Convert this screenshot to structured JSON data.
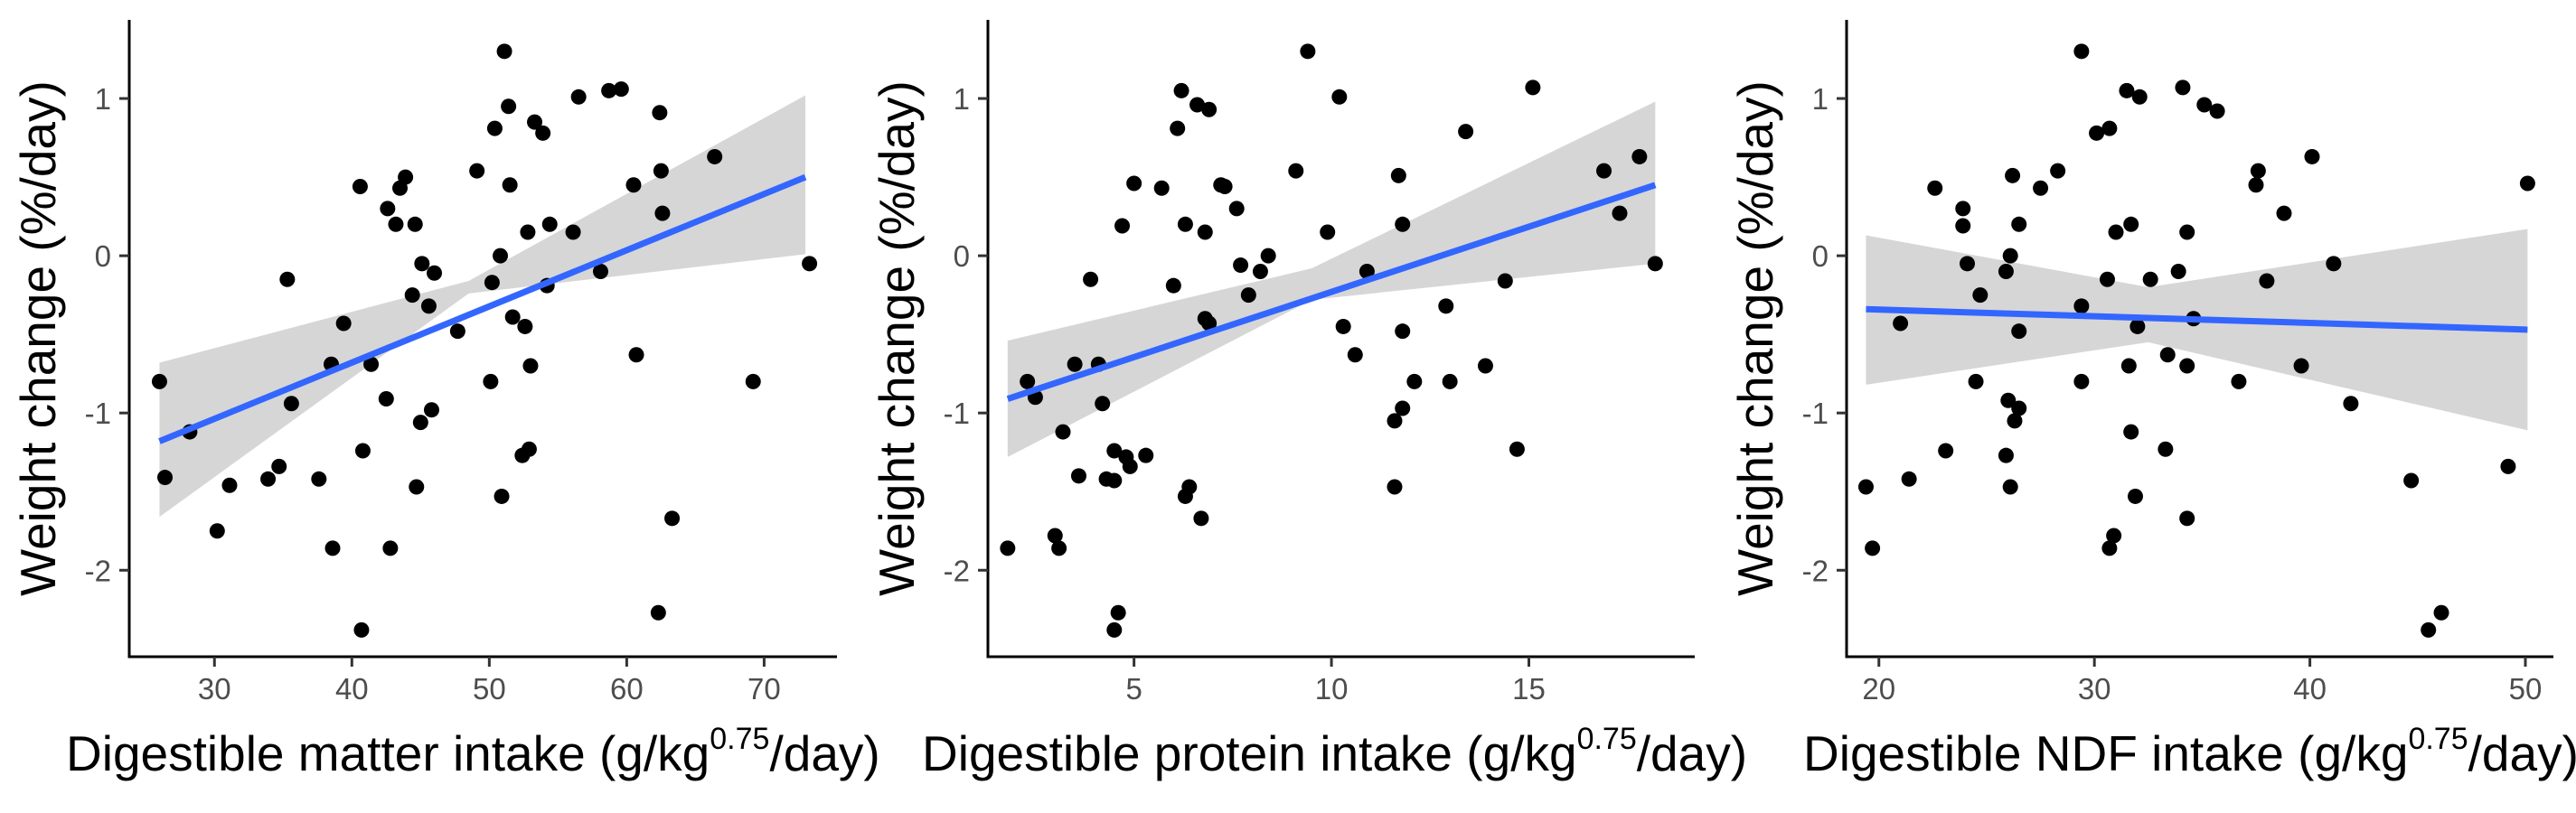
{
  "chart_data": [
    {
      "type": "scatter",
      "xlabel": "Digestible matter intake (g/kg",
      "xlabel_sup": "0.75",
      "xlabel_tail": "/day)",
      "ylabel": "Weight change (%/day)",
      "xlim": [
        23.8,
        75.3
      ],
      "ylim": [
        -2.55,
        1.5
      ],
      "xticks": [
        30,
        40,
        50,
        60,
        70
      ],
      "yticks": [
        -2,
        -1,
        0,
        1
      ],
      "grid": false,
      "smooth": {
        "method": "lm",
        "start": [
          26,
          -1.18
        ],
        "end": [
          73,
          0.5
        ],
        "ci_lower": [
          -1.66,
          -0.24,
          0.01
        ],
        "ci_upper": [
          -0.68,
          -0.16,
          1.02
        ],
        "ci_x": [
          26,
          48.5,
          73
        ]
      },
      "points": [
        {
          "x": 26,
          "y": -0.8
        },
        {
          "x": 26.4,
          "y": -1.41
        },
        {
          "x": 28.2,
          "y": -1.12
        },
        {
          "x": 30.2,
          "y": -1.75
        },
        {
          "x": 31.1,
          "y": -1.46
        },
        {
          "x": 33.9,
          "y": -1.42
        },
        {
          "x": 34.7,
          "y": -1.34
        },
        {
          "x": 35.3,
          "y": -0.15
        },
        {
          "x": 35.6,
          "y": -0.94
        },
        {
          "x": 37.6,
          "y": -1.42
        },
        {
          "x": 38.5,
          "y": -0.69
        },
        {
          "x": 38.6,
          "y": -1.86
        },
        {
          "x": 39.4,
          "y": -0.43
        },
        {
          "x": 40.6,
          "y": 0.44
        },
        {
          "x": 40.7,
          "y": -2.38
        },
        {
          "x": 40.8,
          "y": -1.24
        },
        {
          "x": 41.4,
          "y": -0.69
        },
        {
          "x": 42.5,
          "y": -0.91
        },
        {
          "x": 42.6,
          "y": 0.3
        },
        {
          "x": 42.8,
          "y": -1.86
        },
        {
          "x": 43.2,
          "y": 0.2
        },
        {
          "x": 43.5,
          "y": 0.43
        },
        {
          "x": 43.9,
          "y": 0.5
        },
        {
          "x": 44.4,
          "y": -0.25
        },
        {
          "x": 44.6,
          "y": 0.2
        },
        {
          "x": 44.7,
          "y": -1.47
        },
        {
          "x": 45,
          "y": -1.06
        },
        {
          "x": 45.1,
          "y": -0.05
        },
        {
          "x": 45.6,
          "y": -0.32
        },
        {
          "x": 45.8,
          "y": -0.98
        },
        {
          "x": 46,
          "y": -0.11
        },
        {
          "x": 47.7,
          "y": -0.48
        },
        {
          "x": 49.1,
          "y": 0.54
        },
        {
          "x": 50.1,
          "y": -0.8
        },
        {
          "x": 50.2,
          "y": -0.17
        },
        {
          "x": 50.4,
          "y": 0.81
        },
        {
          "x": 50.8,
          "y": 0
        },
        {
          "x": 50.9,
          "y": -1.53
        },
        {
          "x": 51.1,
          "y": 1.3
        },
        {
          "x": 51.4,
          "y": 0.95
        },
        {
          "x": 51.5,
          "y": 0.45
        },
        {
          "x": 51.7,
          "y": -0.39
        },
        {
          "x": 52.4,
          "y": -1.27
        },
        {
          "x": 52.6,
          "y": -0.45
        },
        {
          "x": 52.8,
          "y": 0.15
        },
        {
          "x": 52.9,
          "y": -1.23
        },
        {
          "x": 53,
          "y": -0.7
        },
        {
          "x": 53.3,
          "y": 0.85
        },
        {
          "x": 53.9,
          "y": 0.78
        },
        {
          "x": 54.2,
          "y": -0.19
        },
        {
          "x": 54.4,
          "y": 0.2
        },
        {
          "x": 56.1,
          "y": 0.15
        },
        {
          "x": 56.5,
          "y": 1.01
        },
        {
          "x": 58.1,
          "y": -0.1
        },
        {
          "x": 58.7,
          "y": 1.05
        },
        {
          "x": 59.6,
          "y": 1.06
        },
        {
          "x": 60.5,
          "y": 0.45
        },
        {
          "x": 60.7,
          "y": -0.63
        },
        {
          "x": 62.3,
          "y": -2.27
        },
        {
          "x": 62.4,
          "y": 0.91
        },
        {
          "x": 62.5,
          "y": 0.54
        },
        {
          "x": 62.6,
          "y": 0.27
        },
        {
          "x": 63.3,
          "y": -1.67
        },
        {
          "x": 66.4,
          "y": 0.63
        },
        {
          "x": 69.2,
          "y": -0.8
        },
        {
          "x": 73.3,
          "y": -0.05
        }
      ]
    },
    {
      "type": "scatter",
      "xlabel": "Digestible protein intake (g/kg",
      "xlabel_sup": "0.75",
      "xlabel_tail": "/day)",
      "ylabel": "Weight change (%/day)",
      "xlim": [
        1.3,
        19.2
      ],
      "ylim": [
        -2.55,
        1.5
      ],
      "xticks": [
        5,
        10,
        15
      ],
      "yticks": [
        -2,
        -1,
        0,
        1
      ],
      "grid": false,
      "smooth": {
        "method": "lm",
        "start": [
          1.8,
          -0.91
        ],
        "end": [
          18.2,
          0.45
        ],
        "ci_lower": [
          -1.28,
          -0.28,
          -0.05
        ],
        "ci_upper": [
          -0.54,
          -0.08,
          0.98
        ],
        "ci_x": [
          1.8,
          9.5,
          18.2
        ]
      },
      "points": [
        {
          "x": 1.8,
          "y": -1.86
        },
        {
          "x": 2.3,
          "y": -0.8
        },
        {
          "x": 2.5,
          "y": -0.9
        },
        {
          "x": 3,
          "y": -1.78
        },
        {
          "x": 3.1,
          "y": -1.86
        },
        {
          "x": 3.2,
          "y": -1.12
        },
        {
          "x": 3.5,
          "y": -0.69
        },
        {
          "x": 3.6,
          "y": -1.4
        },
        {
          "x": 3.9,
          "y": -0.15
        },
        {
          "x": 4.1,
          "y": -0.69
        },
        {
          "x": 4.2,
          "y": -0.94
        },
        {
          "x": 4.3,
          "y": -1.42
        },
        {
          "x": 4.5,
          "y": -1.43
        },
        {
          "x": 4.5,
          "y": -1.24
        },
        {
          "x": 4.5,
          "y": -2.38
        },
        {
          "x": 4.6,
          "y": -2.27
        },
        {
          "x": 4.7,
          "y": 0.19
        },
        {
          "x": 4.8,
          "y": -1.28
        },
        {
          "x": 4.9,
          "y": -1.34
        },
        {
          "x": 5,
          "y": 0.46
        },
        {
          "x": 5.3,
          "y": -1.27
        },
        {
          "x": 5.7,
          "y": 0.43
        },
        {
          "x": 6,
          "y": -0.19
        },
        {
          "x": 6.1,
          "y": 0.81
        },
        {
          "x": 6.2,
          "y": 1.05
        },
        {
          "x": 6.3,
          "y": 0.2
        },
        {
          "x": 6.3,
          "y": -1.53
        },
        {
          "x": 6.4,
          "y": -1.47
        },
        {
          "x": 6.6,
          "y": 0.96
        },
        {
          "x": 6.7,
          "y": -1.67
        },
        {
          "x": 6.8,
          "y": 0.15
        },
        {
          "x": 6.8,
          "y": -0.4
        },
        {
          "x": 6.9,
          "y": 0.93
        },
        {
          "x": 6.9,
          "y": -0.43
        },
        {
          "x": 7.2,
          "y": 0.45
        },
        {
          "x": 7.3,
          "y": 0.44
        },
        {
          "x": 7.6,
          "y": 0.3
        },
        {
          "x": 7.7,
          "y": -0.06
        },
        {
          "x": 7.9,
          "y": -0.25
        },
        {
          "x": 8.2,
          "y": -0.1
        },
        {
          "x": 8.4,
          "y": 0
        },
        {
          "x": 9.1,
          "y": 0.54
        },
        {
          "x": 9.4,
          "y": 1.3
        },
        {
          "x": 9.9,
          "y": 0.15
        },
        {
          "x": 10.2,
          "y": 1.01
        },
        {
          "x": 10.3,
          "y": -0.45
        },
        {
          "x": 10.6,
          "y": -0.63
        },
        {
          "x": 10.9,
          "y": -0.1
        },
        {
          "x": 11.6,
          "y": -1.05
        },
        {
          "x": 11.6,
          "y": -1.47
        },
        {
          "x": 11.7,
          "y": 0.51
        },
        {
          "x": 11.8,
          "y": 0.2
        },
        {
          "x": 11.8,
          "y": -0.97
        },
        {
          "x": 11.8,
          "y": -0.48
        },
        {
          "x": 12.1,
          "y": -0.8
        },
        {
          "x": 12.9,
          "y": -0.32
        },
        {
          "x": 13,
          "y": -0.8
        },
        {
          "x": 13.4,
          "y": 0.79
        },
        {
          "x": 13.9,
          "y": -0.7
        },
        {
          "x": 14.4,
          "y": -0.16
        },
        {
          "x": 14.7,
          "y": -1.23
        },
        {
          "x": 15.1,
          "y": 1.07
        },
        {
          "x": 16.9,
          "y": 0.54
        },
        {
          "x": 17.3,
          "y": 0.27
        },
        {
          "x": 17.8,
          "y": 0.63
        },
        {
          "x": 18.2,
          "y": -0.05
        }
      ]
    },
    {
      "type": "scatter",
      "xlabel": "Digestible NDF intake (g/kg",
      "xlabel_sup": "0.75",
      "xlabel_tail": "/day)",
      "ylabel": "Weight change (%/day)",
      "xlim": [
        18.5,
        51.3
      ],
      "ylim": [
        -2.55,
        1.5
      ],
      "xticks": [
        20,
        30,
        40,
        50
      ],
      "yticks": [
        -2,
        -1,
        0,
        1
      ],
      "grid": false,
      "smooth": {
        "method": "lm",
        "start": [
          19.4,
          -0.34
        ],
        "end": [
          50.1,
          -0.47
        ],
        "ci_lower": [
          -0.82,
          -0.55,
          -1.11
        ],
        "ci_upper": [
          0.13,
          -0.2,
          0.17
        ],
        "ci_x": [
          19.4,
          32.5,
          50.1
        ]
      },
      "points": [
        {
          "x": 19.4,
          "y": -1.47
        },
        {
          "x": 19.7,
          "y": -1.86
        },
        {
          "x": 21,
          "y": -0.43
        },
        {
          "x": 21.4,
          "y": -1.42
        },
        {
          "x": 22.6,
          "y": 0.43
        },
        {
          "x": 23.1,
          "y": -1.24
        },
        {
          "x": 23.9,
          "y": 0.3
        },
        {
          "x": 23.9,
          "y": 0.19
        },
        {
          "x": 24.1,
          "y": -0.05
        },
        {
          "x": 24.5,
          "y": -0.8
        },
        {
          "x": 24.7,
          "y": -0.25
        },
        {
          "x": 25.9,
          "y": -0.1
        },
        {
          "x": 25.9,
          "y": -1.27
        },
        {
          "x": 26,
          "y": -0.92
        },
        {
          "x": 26.1,
          "y": 0
        },
        {
          "x": 26.1,
          "y": -1.47
        },
        {
          "x": 26.2,
          "y": 0.51
        },
        {
          "x": 26.3,
          "y": -1.05
        },
        {
          "x": 26.5,
          "y": 0.2
        },
        {
          "x": 26.5,
          "y": -0.48
        },
        {
          "x": 26.5,
          "y": -0.97
        },
        {
          "x": 27.5,
          "y": 0.43
        },
        {
          "x": 28.3,
          "y": 0.54
        },
        {
          "x": 29.4,
          "y": 1.3
        },
        {
          "x": 29.4,
          "y": -0.32
        },
        {
          "x": 29.4,
          "y": -0.8
        },
        {
          "x": 30.1,
          "y": 0.78
        },
        {
          "x": 30.6,
          "y": -0.15
        },
        {
          "x": 30.7,
          "y": 0.81
        },
        {
          "x": 30.7,
          "y": -1.86
        },
        {
          "x": 30.9,
          "y": -1.78
        },
        {
          "x": 31,
          "y": 0.15
        },
        {
          "x": 31.5,
          "y": 1.05
        },
        {
          "x": 31.6,
          "y": -0.7
        },
        {
          "x": 31.7,
          "y": 0.2
        },
        {
          "x": 31.7,
          "y": -1.12
        },
        {
          "x": 31.9,
          "y": -1.53
        },
        {
          "x": 32,
          "y": -0.45
        },
        {
          "x": 32.1,
          "y": 1.01
        },
        {
          "x": 32.6,
          "y": -0.15
        },
        {
          "x": 33.3,
          "y": -1.23
        },
        {
          "x": 33.4,
          "y": -0.63
        },
        {
          "x": 33.9,
          "y": -0.1
        },
        {
          "x": 34.1,
          "y": 1.07
        },
        {
          "x": 34.3,
          "y": -0.7
        },
        {
          "x": 34.3,
          "y": -1.67
        },
        {
          "x": 34.3,
          "y": 0.15
        },
        {
          "x": 34.6,
          "y": -0.4
        },
        {
          "x": 35.1,
          "y": 0.96
        },
        {
          "x": 35.7,
          "y": 0.92
        },
        {
          "x": 36.7,
          "y": -0.8
        },
        {
          "x": 37.5,
          "y": 0.45
        },
        {
          "x": 37.6,
          "y": 0.54
        },
        {
          "x": 38,
          "y": -0.16
        },
        {
          "x": 38.8,
          "y": 0.27
        },
        {
          "x": 39.6,
          "y": -0.7
        },
        {
          "x": 40.1,
          "y": 0.63
        },
        {
          "x": 41.1,
          "y": -0.05
        },
        {
          "x": 41.9,
          "y": -0.94
        },
        {
          "x": 44.7,
          "y": -1.43
        },
        {
          "x": 45.5,
          "y": -2.38
        },
        {
          "x": 46.1,
          "y": -2.27
        },
        {
          "x": 49.2,
          "y": -1.34
        },
        {
          "x": 50.1,
          "y": 0.46
        }
      ]
    }
  ]
}
